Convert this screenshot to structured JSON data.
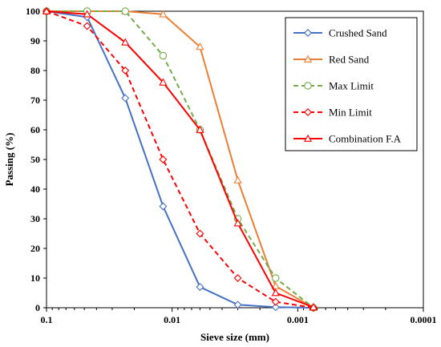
{
  "chart_data": {
    "type": "line",
    "xlabel": "Sieve size (mm)",
    "ylabel": "Passing (%)",
    "xscale": "log",
    "x_reversed": true,
    "xlim": [
      0.1,
      0.0001
    ],
    "ylim": [
      0,
      100
    ],
    "xticks": [
      0.1,
      0.01,
      0.001,
      0.0001
    ],
    "xtick_labels": [
      "0.1",
      "0.01",
      "0.001",
      "0.0001"
    ],
    "yticks": [
      0,
      10,
      20,
      30,
      40,
      50,
      60,
      70,
      80,
      90,
      100
    ],
    "ytick_labels": [
      "0",
      "10",
      "20",
      "30",
      "40",
      "50",
      "60",
      "70",
      "80",
      "90",
      "100"
    ],
    "grid": false,
    "legend_position": "top-right",
    "series": [
      {
        "name": "Crushed Sand",
        "color": "#4472C4",
        "dash": "solid",
        "marker": "diamond",
        "x": [
          0.1,
          0.0475,
          0.0236,
          0.0118,
          0.006,
          0.003,
          0.0015,
          0.00075
        ],
        "y": [
          100,
          98,
          70.7,
          34.2,
          7,
          1,
          0.2,
          0
        ]
      },
      {
        "name": "Red Sand",
        "color": "#ED7D31",
        "dash": "solid",
        "marker": "triangle",
        "x": [
          0.1,
          0.0475,
          0.0236,
          0.0118,
          0.006,
          0.003,
          0.0015,
          0.00075
        ],
        "y": [
          100,
          100,
          100,
          99,
          88,
          43,
          7.3,
          0
        ]
      },
      {
        "name": "Max Limit",
        "color": "#70AD47",
        "dash": "dashed",
        "marker": "circle",
        "x": [
          0.1,
          0.0475,
          0.0236,
          0.0118,
          0.006,
          0.003,
          0.0015,
          0.00075
        ],
        "y": [
          100,
          100,
          100,
          85,
          60,
          30,
          10,
          0
        ]
      },
      {
        "name": "Min Limit",
        "color": "#FF0000",
        "dash": "dashed",
        "marker": "diamond",
        "x": [
          0.1,
          0.0475,
          0.0236,
          0.0118,
          0.006,
          0.003,
          0.0015,
          0.00075
        ],
        "y": [
          100,
          95,
          80,
          50,
          25,
          10,
          2,
          0
        ]
      },
      {
        "name": "Combination F.A",
        "color": "#FF0000",
        "dash": "solid",
        "marker": "triangle",
        "x": [
          0.1,
          0.0475,
          0.0236,
          0.0118,
          0.006,
          0.003,
          0.0015,
          0.00075
        ],
        "y": [
          100,
          99,
          89.5,
          76,
          60,
          28.5,
          5,
          0.2
        ]
      }
    ]
  }
}
